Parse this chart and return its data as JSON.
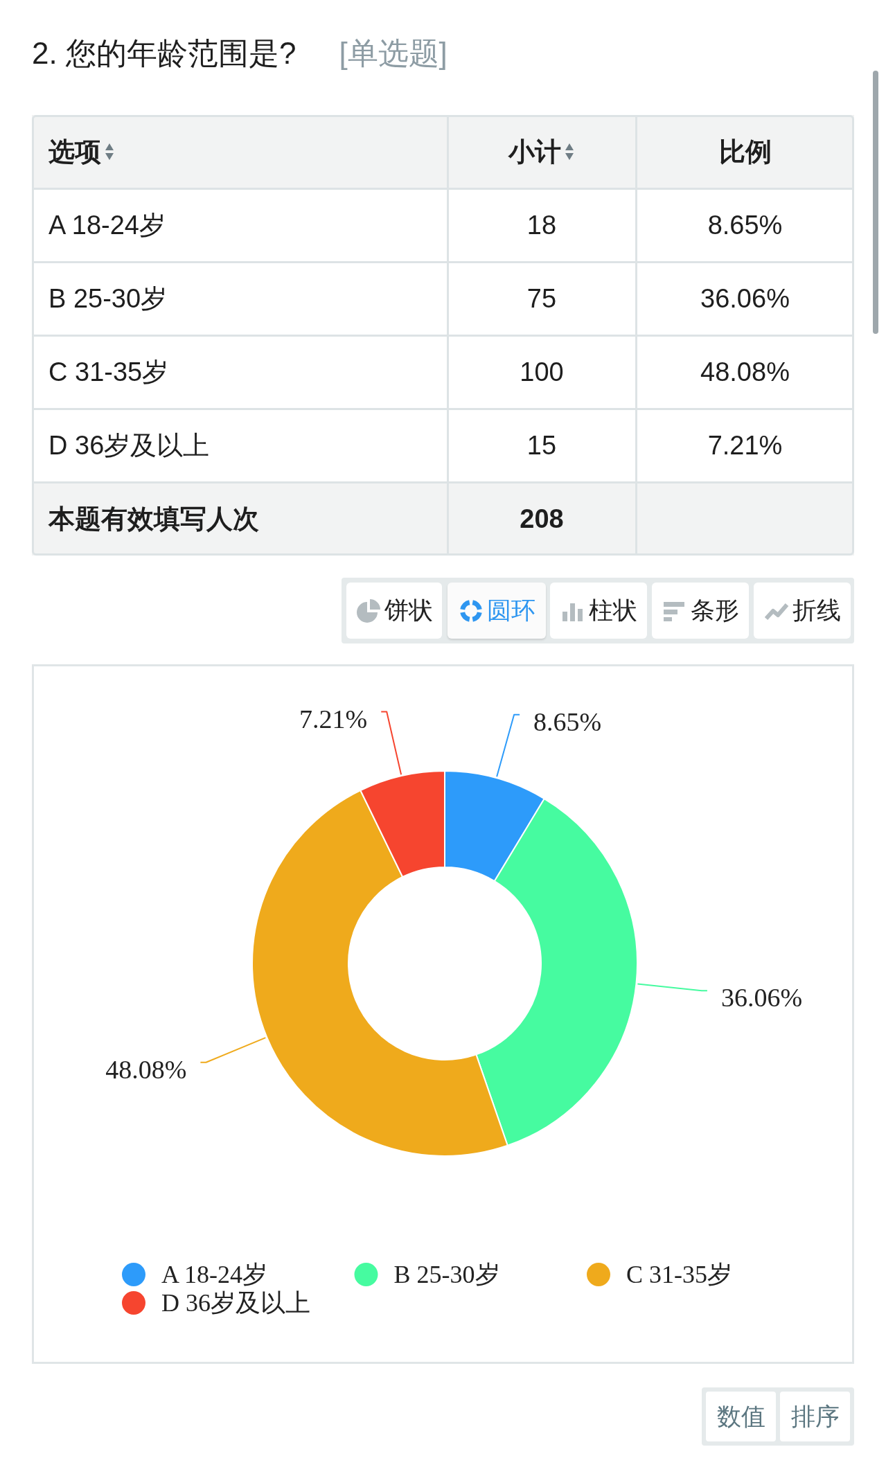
{
  "chart_data": {
    "type": "donut",
    "title": "2. 您的年龄范围是?",
    "subtitle": "[单选题]",
    "categories": [
      "A 18-24岁",
      "B 25-30岁",
      "C 31-35岁",
      "D 36岁及以上"
    ],
    "values": [
      8.65,
      36.06,
      48.08,
      7.21
    ],
    "value_labels": [
      "8.65%",
      "36.06%",
      "48.08%",
      "7.21%"
    ],
    "colors": [
      "#2d9bfa",
      "#46fba0",
      "#efaa1c",
      "#f6452f"
    ],
    "legend": "bottom",
    "annotations": [
      "选项",
      "小计",
      "比例",
      "18",
      "75",
      "100",
      "15",
      "本题有效填写人次",
      "208",
      "饼状",
      "圆环",
      "柱状",
      "条形",
      "折线",
      "数值",
      "排序"
    ]
  }
}
